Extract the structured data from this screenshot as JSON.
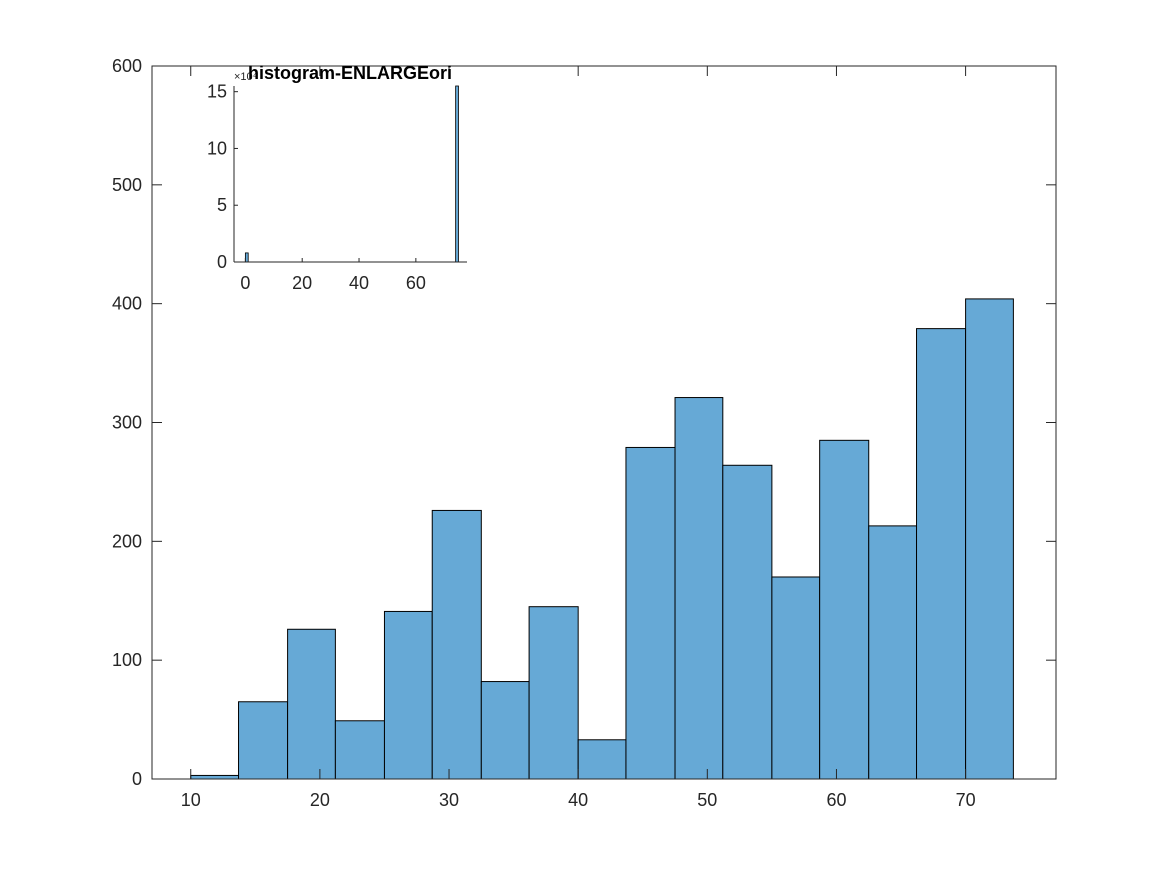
{
  "chart_data": [
    {
      "id": "main",
      "type": "bar",
      "subtype": "histogram",
      "title": "",
      "xlabel": "",
      "ylabel": "",
      "xlim": [
        7,
        77
      ],
      "ylim": [
        0,
        600
      ],
      "xticks": [
        10,
        20,
        30,
        40,
        50,
        60,
        70
      ],
      "yticks": [
        0,
        100,
        200,
        300,
        400,
        500,
        600
      ],
      "bin_edges": [
        10,
        13.7,
        17.5,
        21.2,
        25,
        28.7,
        32.5,
        36.2,
        40,
        43.7,
        47.5,
        51.2,
        55,
        58.7,
        62.5,
        66.2,
        70,
        73.7
      ],
      "values": [
        3,
        65,
        126,
        49,
        141,
        226,
        82,
        145,
        33,
        279,
        321,
        264,
        170,
        285,
        213,
        379,
        404
      ],
      "grid": false,
      "bar_color": "#66A9D6",
      "edge_color": "#000000"
    },
    {
      "id": "inset",
      "type": "bar",
      "subtype": "histogram",
      "title": "histogram-ENLARGEori",
      "exponent_label": "×10⁴",
      "xlim": [
        -4,
        78
      ],
      "ylim": [
        0,
        15.5
      ],
      "xticks": [
        0,
        20,
        40,
        60
      ],
      "yticks": [
        0,
        5,
        10,
        15
      ],
      "bin_edges": [
        0,
        1,
        74,
        75
      ],
      "values": [
        0.8,
        0,
        15.5
      ],
      "grid": false,
      "bar_color": "#66A9D6",
      "edge_color": "#000000"
    }
  ]
}
